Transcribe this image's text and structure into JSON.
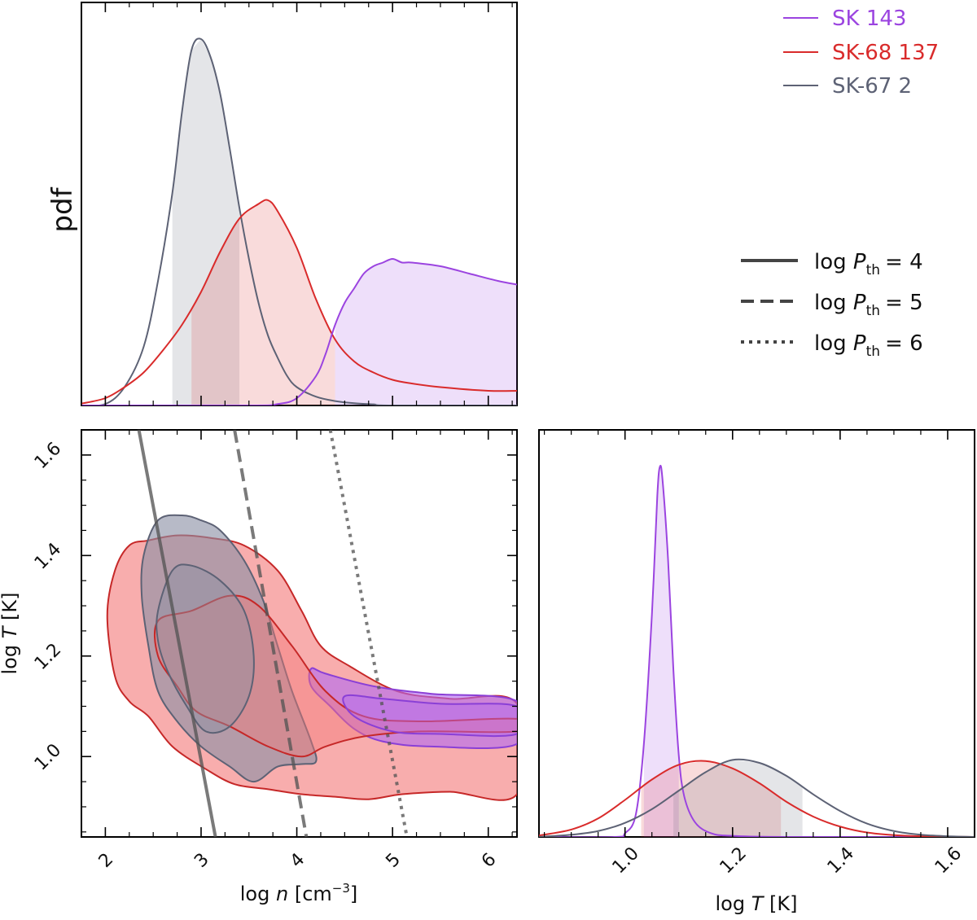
{
  "chart_data": [
    {
      "type": "area",
      "panel": "top-left",
      "ylabel": "pdf",
      "xlim": [
        1.75,
        6.3
      ],
      "note": "1D marginal pdfs of log n; shaded regions mark credible intervals",
      "series": [
        {
          "name": "SK-67 2",
          "color": "#5d6275",
          "x": [
            1.75,
            2.0,
            2.2,
            2.4,
            2.55,
            2.7,
            2.8,
            2.9,
            3.0,
            3.1,
            3.2,
            3.3,
            3.4,
            3.5,
            3.6,
            3.7,
            3.8,
            3.9,
            4.0,
            4.2,
            4.4,
            4.6,
            4.8,
            5.0,
            6.3
          ],
          "y": [
            0.0,
            0.004,
            0.05,
            0.16,
            0.34,
            0.58,
            0.8,
            0.97,
            1.0,
            0.95,
            0.85,
            0.7,
            0.54,
            0.4,
            0.28,
            0.19,
            0.13,
            0.08,
            0.05,
            0.024,
            0.012,
            0.006,
            0.003,
            0.0,
            0.0
          ],
          "shade": [
            2.7,
            3.4
          ]
        },
        {
          "name": "SK-68 137",
          "color": "#d92b2b",
          "x": [
            1.75,
            2.0,
            2.2,
            2.4,
            2.6,
            2.8,
            3.0,
            3.2,
            3.4,
            3.6,
            3.7,
            3.8,
            4.0,
            4.2,
            4.4,
            4.6,
            4.8,
            5.0,
            5.2,
            5.5,
            6.0,
            6.3
          ],
          "y": [
            0.005,
            0.02,
            0.05,
            0.09,
            0.15,
            0.22,
            0.31,
            0.42,
            0.51,
            0.55,
            0.56,
            0.53,
            0.43,
            0.29,
            0.18,
            0.12,
            0.09,
            0.07,
            0.06,
            0.05,
            0.04,
            0.04
          ],
          "shade": [
            2.9,
            4.4
          ]
        },
        {
          "name": "SK 143",
          "color": "#9b44e0",
          "x": [
            1.75,
            3.5,
            3.8,
            4.0,
            4.2,
            4.3,
            4.4,
            4.5,
            4.6,
            4.7,
            4.8,
            4.9,
            5.0,
            5.1,
            5.2,
            5.5,
            5.8,
            6.1,
            6.3
          ],
          "y": [
            0.0,
            0.0,
            0.004,
            0.02,
            0.08,
            0.14,
            0.22,
            0.28,
            0.32,
            0.36,
            0.38,
            0.39,
            0.4,
            0.39,
            0.39,
            0.38,
            0.36,
            0.34,
            0.33
          ],
          "shade": [
            4.4,
            6.3
          ]
        }
      ]
    },
    {
      "type": "contour",
      "panel": "bottom-left",
      "xlabel_parts": [
        "log",
        "n",
        "[cm",
        "−3",
        "]"
      ],
      "ylabel_parts": [
        "log",
        "T",
        "[K]"
      ],
      "xlim": [
        1.75,
        6.3
      ],
      "ylim": [
        0.84,
        1.65
      ],
      "xticks": [
        2,
        3,
        4,
        5,
        6
      ],
      "xticklabels": [
        "2",
        "3",
        "4",
        "5",
        "6"
      ],
      "yticks": [
        1.0,
        1.2,
        1.4,
        1.6
      ],
      "yticklabels": [
        "1.0",
        "1.2",
        "1.4",
        "1.6"
      ],
      "contours": [
        {
          "name": "SK-68 137",
          "level": "outer",
          "color": "#f47a7a",
          "points": [
            [
              2.1,
              1.37
            ],
            [
              2.25,
              1.42
            ],
            [
              2.45,
              1.43
            ],
            [
              2.75,
              1.44
            ],
            [
              3.1,
              1.435
            ],
            [
              3.45,
              1.42
            ],
            [
              3.8,
              1.37
            ],
            [
              4.05,
              1.29
            ],
            [
              4.25,
              1.22
            ],
            [
              4.55,
              1.18
            ],
            [
              5.05,
              1.13
            ],
            [
              5.6,
              1.115
            ],
            [
              6.3,
              1.105
            ],
            [
              6.3,
              0.925
            ],
            [
              5.6,
              0.93
            ],
            [
              5.1,
              0.925
            ],
            [
              4.75,
              0.915
            ],
            [
              4.4,
              0.92
            ],
            [
              4.05,
              0.925
            ],
            [
              3.7,
              0.935
            ],
            [
              3.35,
              0.945
            ],
            [
              3.05,
              0.975
            ],
            [
              2.7,
              1.02
            ],
            [
              2.45,
              1.08
            ],
            [
              2.25,
              1.11
            ],
            [
              2.1,
              1.16
            ],
            [
              2.02,
              1.28
            ],
            [
              2.1,
              1.37
            ]
          ]
        },
        {
          "name": "SK-68 137",
          "level": "inner",
          "color": "#f47a7a",
          "points": [
            [
              2.55,
              1.27
            ],
            [
              2.9,
              1.29
            ],
            [
              3.3,
              1.32
            ],
            [
              3.6,
              1.3
            ],
            [
              3.95,
              1.22
            ],
            [
              4.3,
              1.13
            ],
            [
              4.7,
              1.08
            ],
            [
              5.3,
              1.07
            ],
            [
              6.3,
              1.075
            ],
            [
              6.3,
              1.05
            ],
            [
              5.3,
              1.05
            ],
            [
              4.7,
              1.04
            ],
            [
              4.3,
              1.02
            ],
            [
              4.05,
              1.0
            ],
            [
              3.7,
              1.02
            ],
            [
              3.3,
              1.06
            ],
            [
              2.95,
              1.09
            ],
            [
              2.75,
              1.14
            ],
            [
              2.55,
              1.2
            ],
            [
              2.55,
              1.27
            ]
          ]
        },
        {
          "name": "SK-67 2",
          "level": "outer",
          "color": "#8a90a4",
          "points": [
            [
              2.4,
              1.4
            ],
            [
              2.55,
              1.47
            ],
            [
              2.8,
              1.48
            ],
            [
              3.0,
              1.47
            ],
            [
              3.2,
              1.45
            ],
            [
              3.45,
              1.39
            ],
            [
              3.65,
              1.31
            ],
            [
              3.8,
              1.22
            ],
            [
              3.95,
              1.13
            ],
            [
              4.15,
              1.03
            ],
            [
              4.2,
              0.99
            ],
            [
              4.05,
              0.985
            ],
            [
              3.8,
              0.98
            ],
            [
              3.55,
              0.95
            ],
            [
              3.3,
              0.98
            ],
            [
              3.0,
              1.02
            ],
            [
              2.75,
              1.07
            ],
            [
              2.55,
              1.13
            ],
            [
              2.45,
              1.22
            ],
            [
              2.38,
              1.32
            ],
            [
              2.4,
              1.4
            ]
          ]
        },
        {
          "name": "SK-67 2",
          "level": "inner",
          "color": "#8a90a4",
          "points": [
            [
              2.55,
              1.29
            ],
            [
              2.7,
              1.37
            ],
            [
              2.9,
              1.38
            ],
            [
              3.2,
              1.35
            ],
            [
              3.45,
              1.29
            ],
            [
              3.55,
              1.2
            ],
            [
              3.5,
              1.12
            ],
            [
              3.3,
              1.06
            ],
            [
              3.05,
              1.05
            ],
            [
              2.85,
              1.1
            ],
            [
              2.65,
              1.17
            ],
            [
              2.55,
              1.23
            ],
            [
              2.55,
              1.29
            ]
          ]
        },
        {
          "name": "SK 143",
          "level": "outer",
          "color": "#b36af0",
          "points": [
            [
              4.15,
              1.175
            ],
            [
              4.3,
              1.165
            ],
            [
              4.8,
              1.14
            ],
            [
              5.4,
              1.125
            ],
            [
              6.3,
              1.11
            ],
            [
              6.3,
              1.025
            ],
            [
              5.4,
              1.02
            ],
            [
              4.9,
              1.03
            ],
            [
              4.6,
              1.055
            ],
            [
              4.35,
              1.1
            ],
            [
              4.15,
              1.14
            ],
            [
              4.15,
              1.175
            ]
          ]
        },
        {
          "name": "SK 143",
          "level": "inner",
          "color": "#b36af0",
          "points": [
            [
              4.5,
              1.12
            ],
            [
              4.9,
              1.115
            ],
            [
              5.5,
              1.105
            ],
            [
              6.3,
              1.1
            ],
            [
              6.3,
              1.045
            ],
            [
              5.5,
              1.045
            ],
            [
              5.0,
              1.05
            ],
            [
              4.6,
              1.08
            ],
            [
              4.5,
              1.12
            ]
          ]
        }
      ],
      "pressure_lines": [
        {
          "label_parts": [
            "log",
            "P",
            "th",
            "= 4"
          ],
          "style": "solid",
          "points": [
            [
              2.35,
              1.65
            ],
            [
              3.15,
              0.84
            ]
          ]
        },
        {
          "label_parts": [
            "log",
            "P",
            "th",
            "= 5"
          ],
          "style": "dashed",
          "points": [
            [
              3.35,
              1.65
            ],
            [
              4.1,
              0.84
            ]
          ]
        },
        {
          "label_parts": [
            "log",
            "P",
            "th",
            "= 6"
          ],
          "style": "dotted",
          "points": [
            [
              4.35,
              1.65
            ],
            [
              5.15,
              0.84
            ]
          ]
        }
      ]
    },
    {
      "type": "area",
      "panel": "bottom-right",
      "xlabel_parts": [
        "log",
        "T",
        "[K]"
      ],
      "xlim": [
        0.84,
        1.65
      ],
      "xticks": [
        1.0,
        1.2,
        1.4,
        1.6
      ],
      "xticklabels": [
        "1.0",
        "1.2",
        "1.4",
        "1.6"
      ],
      "series": [
        {
          "name": "SK 143",
          "color": "#9b44e0",
          "x": [
            0.84,
            0.98,
            1.0,
            1.02,
            1.035,
            1.05,
            1.06,
            1.065,
            1.07,
            1.08,
            1.09,
            1.1,
            1.11,
            1.13,
            1.16,
            1.2,
            1.3,
            1.65
          ],
          "y": [
            0.0,
            0.0,
            0.01,
            0.06,
            0.25,
            0.6,
            0.92,
            1.0,
            0.96,
            0.75,
            0.45,
            0.22,
            0.11,
            0.04,
            0.01,
            0.003,
            0.0,
            0.0
          ],
          "shade": [
            1.035,
            1.1
          ]
        },
        {
          "name": "SK-68 137",
          "color": "#d92b2b",
          "x": [
            0.84,
            0.9,
            0.95,
            1.0,
            1.05,
            1.1,
            1.15,
            1.2,
            1.25,
            1.3,
            1.35,
            1.4,
            1.45,
            1.5,
            1.55,
            1.65
          ],
          "y": [
            0.004,
            0.02,
            0.05,
            0.1,
            0.155,
            0.195,
            0.205,
            0.185,
            0.145,
            0.095,
            0.055,
            0.028,
            0.012,
            0.005,
            0.002,
            0.0
          ],
          "shade": [
            1.03,
            1.29
          ]
        },
        {
          "name": "SK-67 2",
          "color": "#5d6275",
          "x": [
            0.84,
            0.9,
            0.95,
            1.0,
            1.05,
            1.1,
            1.15,
            1.2,
            1.25,
            1.3,
            1.35,
            1.4,
            1.45,
            1.5,
            1.55,
            1.6,
            1.65
          ],
          "y": [
            0.0,
            0.006,
            0.016,
            0.038,
            0.075,
            0.125,
            0.175,
            0.208,
            0.2,
            0.165,
            0.115,
            0.07,
            0.036,
            0.016,
            0.006,
            0.002,
            0.0
          ],
          "shade": [
            1.09,
            1.33
          ]
        }
      ]
    }
  ],
  "legend": {
    "placement": "top-right",
    "entries": [
      {
        "label": "SK 143",
        "color": "#9b44e0"
      },
      {
        "label": "SK-68 137",
        "color": "#d92b2b"
      },
      {
        "label": "SK-67 2",
        "color": "#5d6275"
      }
    ],
    "pressure_entries": [
      {
        "style": "solid",
        "parts": [
          "log",
          "P",
          "th",
          "= 4"
        ]
      },
      {
        "style": "dashed",
        "parts": [
          "log",
          "P",
          "th",
          "= 5"
        ]
      },
      {
        "style": "dotted",
        "parts": [
          "log",
          "P",
          "th",
          "= 6"
        ]
      }
    ]
  }
}
